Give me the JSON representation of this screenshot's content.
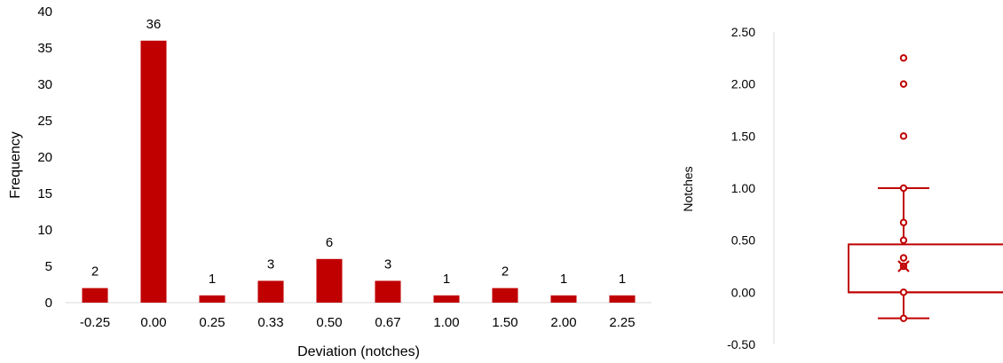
{
  "chart_data": [
    {
      "type": "bar",
      "title": "",
      "xlabel": "Deviation (notches)",
      "ylabel": "Frequency",
      "ylim": [
        0,
        40
      ],
      "yticks": [
        "0",
        "5",
        "10",
        "15",
        "20",
        "25",
        "30",
        "35",
        "40"
      ],
      "categories": [
        "-0.25",
        "0.00",
        "0.25",
        "0.33",
        "0.50",
        "0.67",
        "1.00",
        "1.50",
        "2.00",
        "2.25"
      ],
      "values": [
        2,
        36,
        1,
        3,
        6,
        3,
        1,
        2,
        1,
        1
      ],
      "data_labels": [
        "2",
        "36",
        "1",
        "3",
        "6",
        "3",
        "1",
        "2",
        "1",
        "1"
      ],
      "grid": false,
      "color": "#c00000"
    },
    {
      "type": "box",
      "title": "",
      "ylabel": "Notches",
      "ylim": [
        -0.5,
        2.5
      ],
      "yticks": [
        "-0.50",
        "0.00",
        "0.50",
        "1.00",
        "1.50",
        "2.00",
        "2.50"
      ],
      "whisker_low": -0.25,
      "q1": 0.0,
      "median": 0.0,
      "q3": 0.46,
      "whisker_high": 1.0,
      "mean": 0.25,
      "inner_points": [
        -0.25,
        0.0,
        0.25,
        0.33,
        0.5,
        0.67,
        1.0
      ],
      "outliers": [
        1.5,
        2.0,
        2.25
      ],
      "grid": false,
      "color": "#c00000"
    }
  ]
}
